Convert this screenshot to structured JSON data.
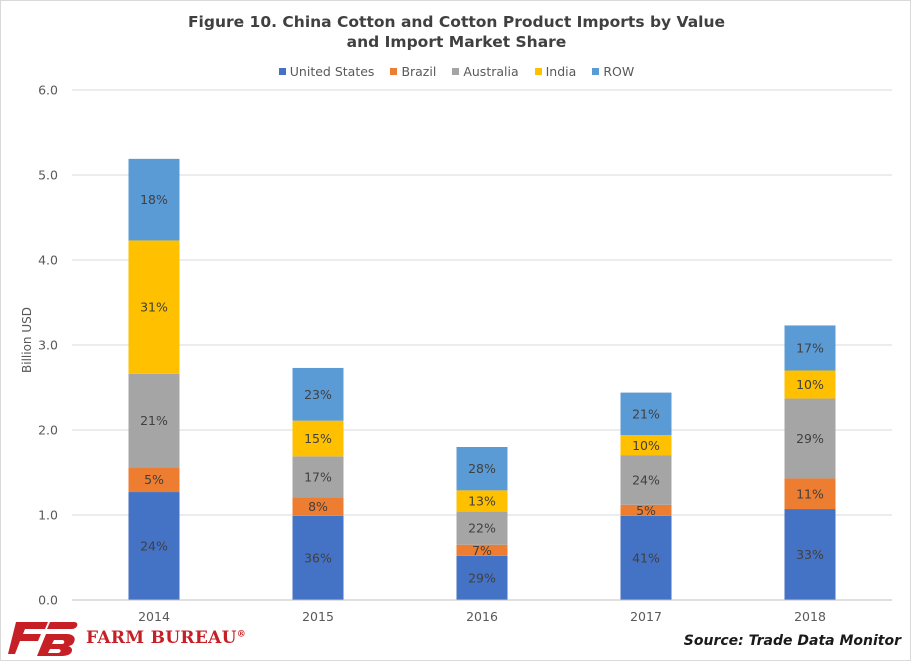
{
  "chart_data": {
    "type": "bar",
    "stacked": true,
    "title_line1": "Figure 10. China Cotton and Cotton Product Imports by Value",
    "title_line2": "and Import Market Share",
    "xlabel": "",
    "ylabel": "Billion USD",
    "ylim": [
      0,
      6
    ],
    "yticks": [
      "0.0",
      "1.0",
      "2.0",
      "3.0",
      "4.0",
      "5.0",
      "6.0"
    ],
    "grid": true,
    "legend_position": "top",
    "categories": [
      "2014",
      "2015",
      "2016",
      "2017",
      "2018"
    ],
    "series": [
      {
        "name": "United States",
        "color": "#4472c4",
        "values": [
          1.27,
          0.99,
          0.52,
          0.99,
          1.07
        ],
        "labels": [
          "24%",
          "36%",
          "29%",
          "41%",
          "33%"
        ]
      },
      {
        "name": "Brazil",
        "color": "#ed7d31",
        "values": [
          0.29,
          0.22,
          0.13,
          0.13,
          0.36
        ],
        "labels": [
          "5%",
          "8%",
          "7%",
          "5%",
          "11%"
        ]
      },
      {
        "name": "Australia",
        "color": "#a5a5a5",
        "values": [
          1.1,
          0.48,
          0.39,
          0.58,
          0.94
        ],
        "labels": [
          "21%",
          "17%",
          "22%",
          "24%",
          "29%"
        ]
      },
      {
        "name": "India",
        "color": "#ffc000",
        "values": [
          1.57,
          0.42,
          0.25,
          0.24,
          0.33
        ],
        "labels": [
          "31%",
          "15%",
          "13%",
          "10%",
          "10%"
        ]
      },
      {
        "name": "ROW",
        "color": "#5b9bd5",
        "values": [
          0.96,
          0.62,
          0.51,
          0.5,
          0.53
        ],
        "labels": [
          "18%",
          "23%",
          "28%",
          "21%",
          "17%"
        ]
      }
    ]
  },
  "footer": {
    "brand": "FARM BUREAU",
    "registered": "®",
    "source": "Source: Trade Data Monitor"
  }
}
